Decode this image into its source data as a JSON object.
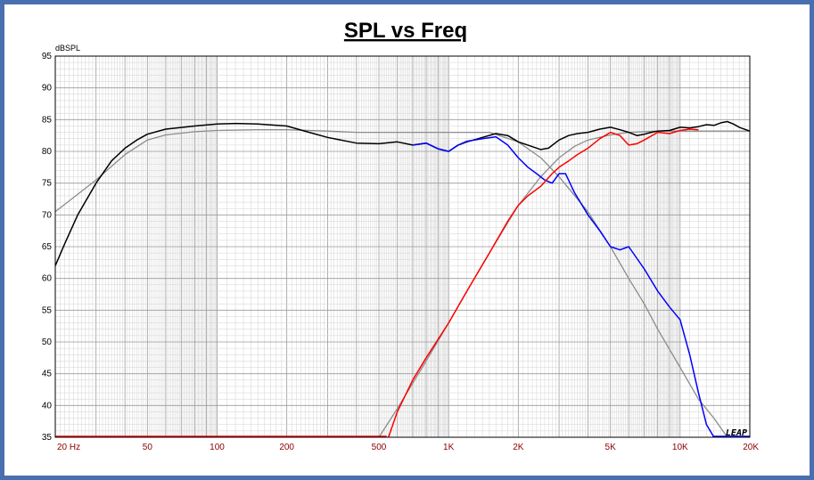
{
  "chart_data": {
    "type": "line",
    "title": "SPL vs Freq",
    "ylabel": "dBSPL",
    "xlabel": "",
    "xscale": "log",
    "xlim": [
      20,
      20000
    ],
    "ylim": [
      35,
      95
    ],
    "grid": true,
    "logo": "LEAP",
    "y_ticks": [
      35,
      40,
      45,
      50,
      55,
      60,
      65,
      70,
      75,
      80,
      85,
      90,
      95
    ],
    "x_ticks": [
      {
        "value": 20,
        "label": "20  Hz"
      },
      {
        "value": 50,
        "label": "50"
      },
      {
        "value": 100,
        "label": "100"
      },
      {
        "value": 200,
        "label": "200"
      },
      {
        "value": 500,
        "label": "500"
      },
      {
        "value": 1000,
        "label": "1K"
      },
      {
        "value": 2000,
        "label": "2K"
      },
      {
        "value": 5000,
        "label": "5K"
      },
      {
        "value": 10000,
        "label": "10K"
      },
      {
        "value": 20000,
        "label": "20K"
      }
    ],
    "series": [
      {
        "color": "#8c8c8c",
        "x": [
          20,
          30,
          40,
          50,
          60,
          80,
          100,
          150,
          200,
          300,
          400,
          500,
          700,
          1000,
          1500,
          2000,
          2500,
          3000,
          4000,
          5000,
          6000,
          7000,
          8000,
          10000,
          12000,
          14000,
          16000
        ],
        "y": [
          70.5,
          75.5,
          79.5,
          81.8,
          82.6,
          83.1,
          83.3,
          83.4,
          83.4,
          83.2,
          83.0,
          83.0,
          83.0,
          83.0,
          83.0,
          81.5,
          79.0,
          76.0,
          70.5,
          65.0,
          60.0,
          56.0,
          52.0,
          46.0,
          41.0,
          38.0,
          35.0
        ]
      },
      {
        "color": "#8c8c8c",
        "x": [
          500,
          600,
          700,
          800,
          1000,
          1200,
          1500,
          2000,
          2500,
          3000,
          3500,
          4000,
          5000,
          6000,
          8000,
          10000,
          15000,
          20000
        ],
        "y": [
          35.0,
          39.5,
          43.5,
          47.0,
          53.0,
          58.0,
          64.0,
          71.5,
          76.0,
          79.0,
          80.8,
          81.8,
          82.6,
          83.0,
          83.2,
          83.2,
          83.2,
          83.2
        ]
      },
      {
        "color": "#000000",
        "x": [
          20,
          22,
          25,
          30,
          35,
          40,
          45,
          50,
          60,
          80,
          100,
          120,
          150,
          200,
          250,
          300,
          400,
          500,
          600,
          700,
          800,
          900,
          1000,
          1100,
          1200,
          1400,
          1600,
          1800,
          2000,
          2200,
          2500,
          2700,
          3000,
          3300,
          3600,
          4000,
          4500,
          5000,
          5500,
          6000,
          6500,
          7000,
          7500,
          8000,
          9000,
          10000,
          11000,
          12000,
          13000,
          14000,
          15000,
          16000,
          17000,
          18000,
          20000
        ],
        "y": [
          62.0,
          65.5,
          70.0,
          75.0,
          78.5,
          80.5,
          81.8,
          82.7,
          83.5,
          84.0,
          84.3,
          84.4,
          84.3,
          84.0,
          83.0,
          82.2,
          81.3,
          81.2,
          81.5,
          81.0,
          81.3,
          80.4,
          80.0,
          81.0,
          81.5,
          82.2,
          82.8,
          82.5,
          81.5,
          81.0,
          80.3,
          80.5,
          81.8,
          82.5,
          82.8,
          83.0,
          83.5,
          83.8,
          83.4,
          83.0,
          82.5,
          82.7,
          83.0,
          83.2,
          83.3,
          83.8,
          83.7,
          83.9,
          84.2,
          84.1,
          84.5,
          84.7,
          84.3,
          83.8,
          83.2
        ]
      },
      {
        "color": "#0000ff",
        "x": [
          700,
          800,
          900,
          1000,
          1100,
          1200,
          1400,
          1600,
          1800,
          2000,
          2200,
          2400,
          2600,
          2800,
          3000,
          3200,
          3500,
          4000,
          4500,
          5000,
          5500,
          6000,
          7000,
          8000,
          9000,
          10000,
          11000,
          12000,
          13000,
          14000
        ],
        "y": [
          81.0,
          81.3,
          80.4,
          80.0,
          81.0,
          81.6,
          82.0,
          82.3,
          81.0,
          79.0,
          77.5,
          76.5,
          75.5,
          75.0,
          76.5,
          76.5,
          73.5,
          70.0,
          67.5,
          65.0,
          64.5,
          65.0,
          61.5,
          58.0,
          55.5,
          53.5,
          48.0,
          42.0,
          37.0,
          35.0
        ]
      },
      {
        "color": "#ff0000",
        "x": [
          550,
          600,
          700,
          800,
          1000,
          1200,
          1500,
          1800,
          2000,
          2200,
          2500,
          2800,
          3000,
          3300,
          3600,
          4000,
          4500,
          5000,
          5500,
          6000,
          6500,
          7000,
          8000,
          9000,
          10000,
          11000,
          12000
        ],
        "y": [
          35.0,
          39.0,
          44.0,
          47.5,
          53.0,
          58.0,
          64.0,
          69.0,
          71.5,
          73.0,
          74.5,
          76.5,
          77.5,
          78.5,
          79.5,
          80.5,
          82.0,
          83.0,
          82.5,
          81.0,
          81.2,
          81.8,
          83.0,
          82.8,
          83.3,
          83.5,
          83.4
        ]
      }
    ]
  }
}
